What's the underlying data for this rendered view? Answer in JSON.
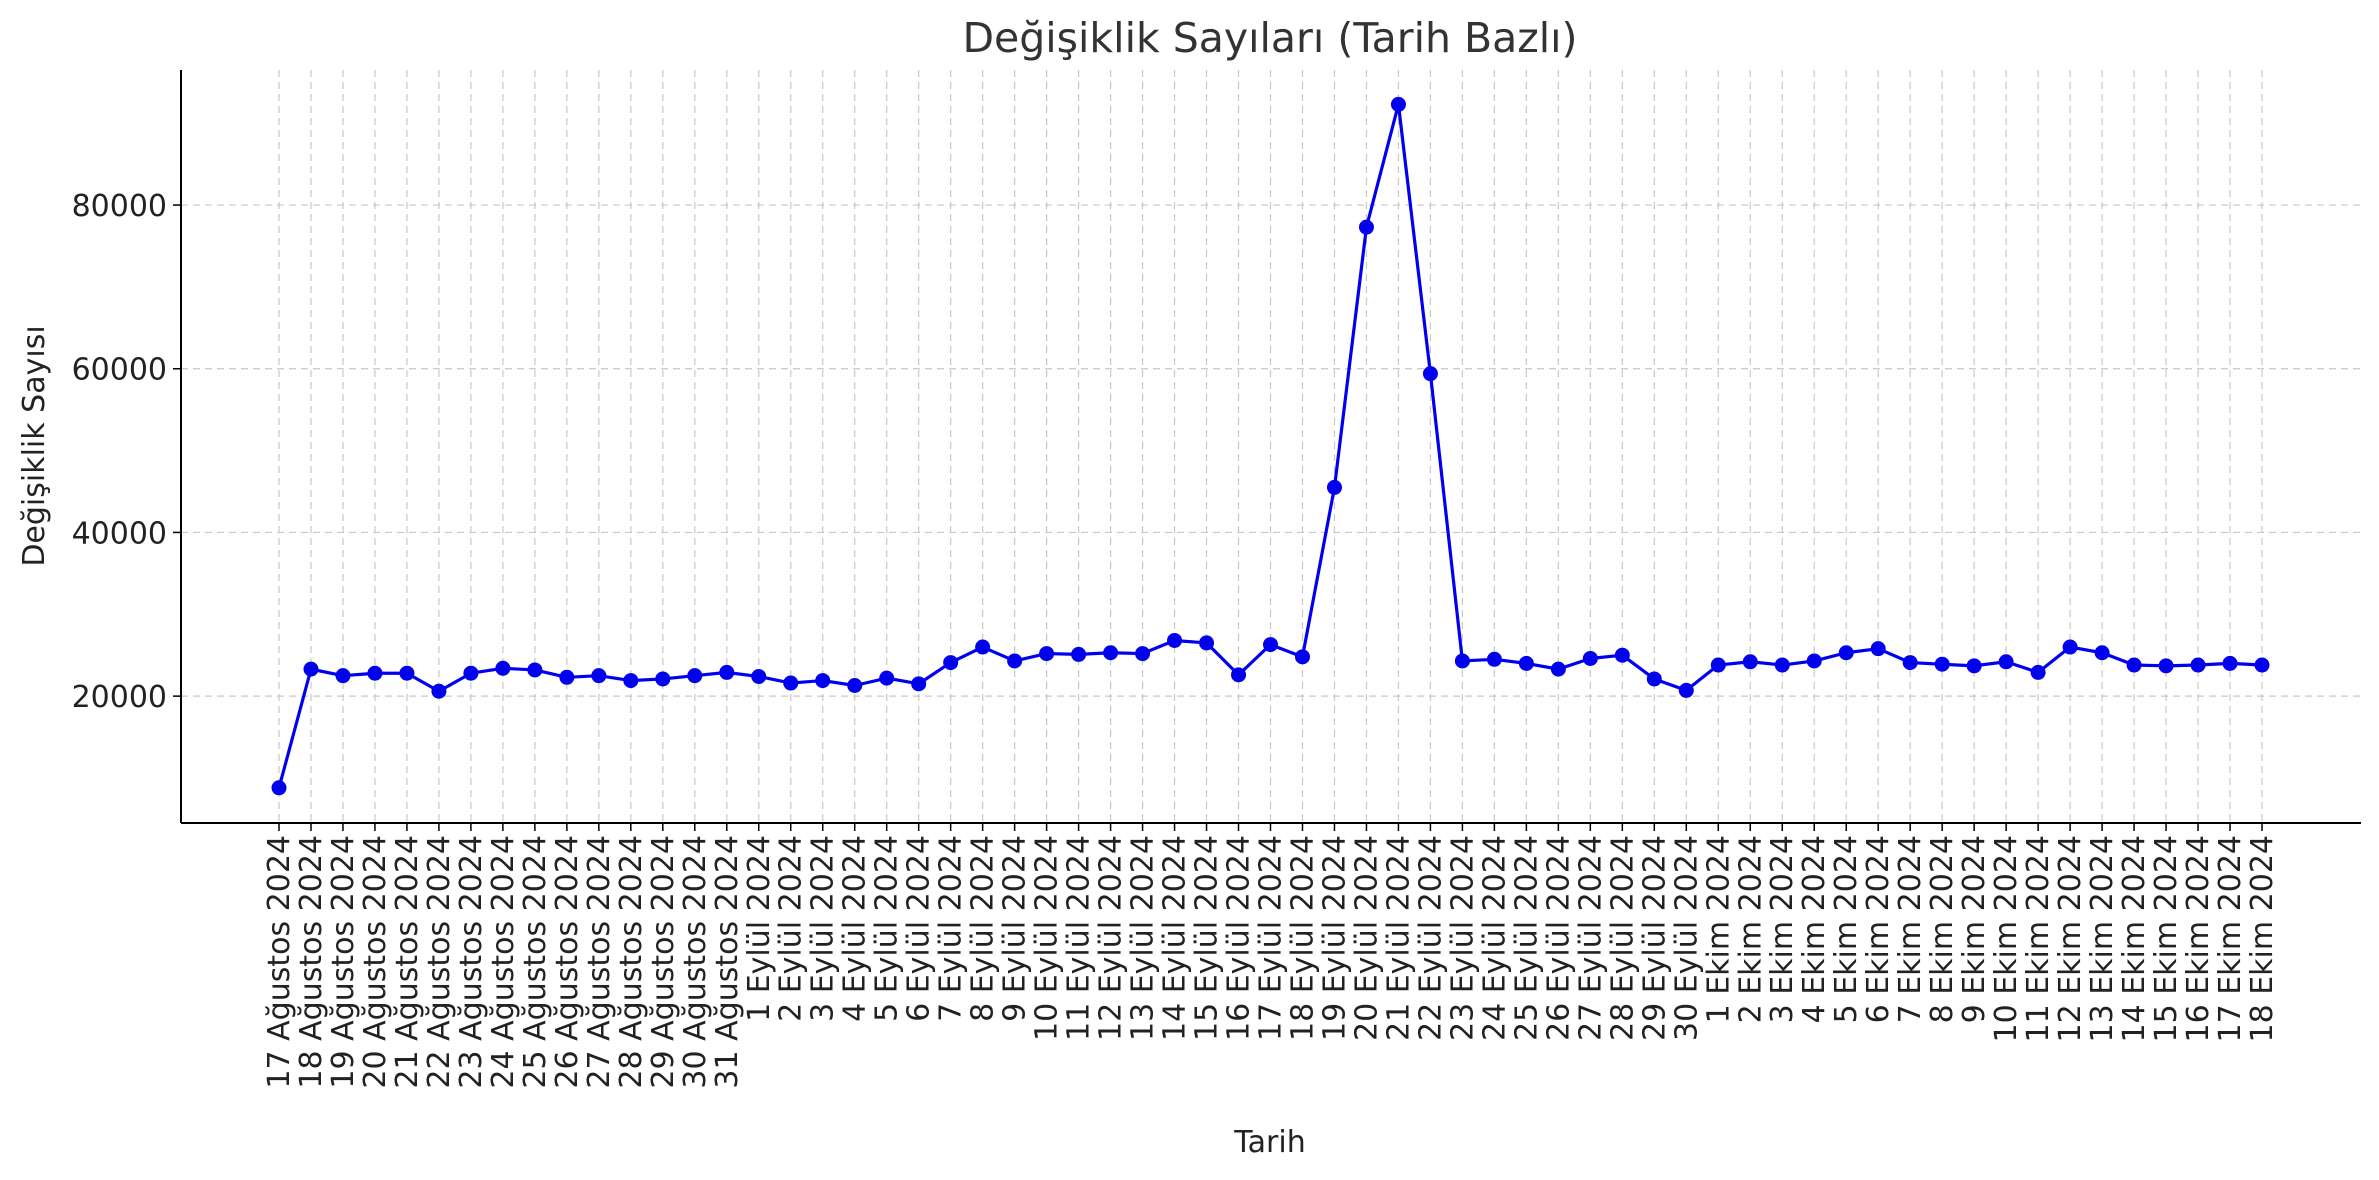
{
  "chart_data": {
    "type": "line",
    "title": "Değişiklik Sayıları (Tarih Bazlı)",
    "xlabel": "Tarih",
    "ylabel": "Değişiklik Sayısı",
    "ylim": [
      4500,
      96500
    ],
    "yticks": [
      20000,
      40000,
      60000,
      80000
    ],
    "grid": true,
    "color": "#0000ee",
    "categories": [
      "17 Ağustos 2024",
      "18 Ağustos 2024",
      "19 Ağustos 2024",
      "20 Ağustos 2024",
      "21 Ağustos 2024",
      "22 Ağustos 2024",
      "23 Ağustos 2024",
      "24 Ağustos 2024",
      "25 Ağustos 2024",
      "26 Ağustos 2024",
      "27 Ağustos 2024",
      "28 Ağustos 2024",
      "29 Ağustos 2024",
      "30 Ağustos 2024",
      "31 Ağustos 2024",
      "1 Eylül 2024",
      "2 Eylül 2024",
      "3 Eylül 2024",
      "4 Eylül 2024",
      "5 Eylül 2024",
      "6 Eylül 2024",
      "7 Eylül 2024",
      "8 Eylül 2024",
      "9 Eylül 2024",
      "10 Eylül 2024",
      "11 Eylül 2024",
      "12 Eylül 2024",
      "13 Eylül 2024",
      "14 Eylül 2024",
      "15 Eylül 2024",
      "16 Eylül 2024",
      "17 Eylül 2024",
      "18 Eylül 2024",
      "19 Eylül 2024",
      "20 Eylül 2024",
      "21 Eylül 2024",
      "22 Eylül 2024",
      "23 Eylül 2024",
      "24 Eylül 2024",
      "25 Eylül 2024",
      "26 Eylül 2024",
      "27 Eylül 2024",
      "28 Eylül 2024",
      "29 Eylül 2024",
      "30 Eylül 2024",
      "1 Ekim 2024",
      "2 Ekim 2024",
      "3 Ekim 2024",
      "4 Ekim 2024",
      "5 Ekim 2024",
      "6 Ekim 2024",
      "7 Ekim 2024",
      "8 Ekim 2024",
      "9 Ekim 2024",
      "10 Ekim 2024",
      "11 Ekim 2024",
      "12 Ekim 2024",
      "13 Ekim 2024",
      "14 Ekim 2024",
      "15 Ekim 2024",
      "16 Ekim 2024",
      "17 Ekim 2024",
      "18 Ekim 2024"
    ],
    "values": [
      8800,
      23300,
      22500,
      22800,
      22800,
      20600,
      22800,
      23400,
      23200,
      22300,
      22500,
      21900,
      22100,
      22500,
      22900,
      22400,
      21600,
      21900,
      21300,
      22200,
      21500,
      24100,
      26000,
      24300,
      25200,
      25100,
      25300,
      25200,
      26800,
      26500,
      22600,
      26300,
      24800,
      45500,
      77300,
      92300,
      59400,
      24300,
      24500,
      24000,
      23300,
      24600,
      25000,
      22100,
      20700,
      23800,
      24200,
      23800,
      24300,
      25300,
      25800,
      24100,
      23900,
      23700,
      24200,
      22900,
      26000,
      25300,
      23800,
      23700,
      23800,
      24000,
      23800
    ]
  }
}
